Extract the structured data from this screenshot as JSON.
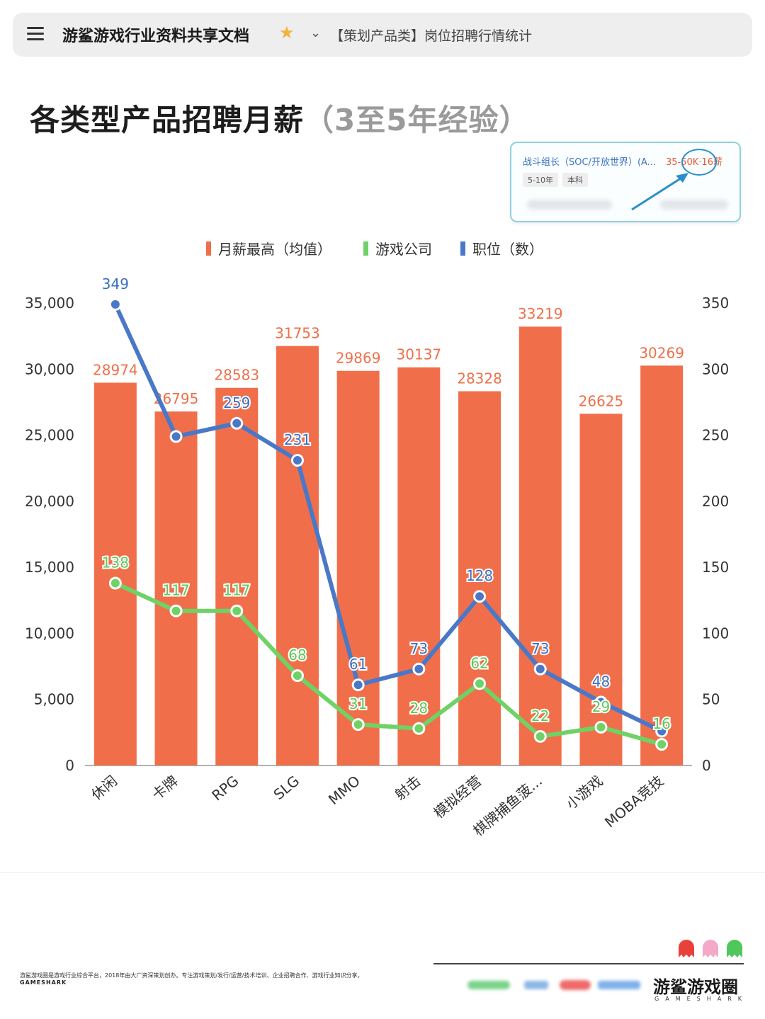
{
  "header": {
    "doc_title": "游鲨游戏行业资料共享文档",
    "sheet_name": "【策划产品类】岗位招聘行情统计",
    "menu_icon": "menu-icon",
    "star_icon": "star-icon",
    "chevron_icon": "chevron-down-icon"
  },
  "page": {
    "title_main": "各类型产品招聘月薪",
    "title_sub": "（3至5年经验）"
  },
  "job_card": {
    "title": "战斗组长（SOC/开放世界）(A...",
    "salary": "35-50K·16薪",
    "tags": [
      "5-10年",
      "本科"
    ]
  },
  "colors": {
    "bar": "#f06f4a",
    "companies": "#6fd266",
    "positions": "#4a78c8",
    "accent": "#2a8fc9"
  },
  "chart_data": {
    "type": "bar",
    "legend": [
      "月薪最高（均值）",
      "游戏公司",
      "职位（数）"
    ],
    "categories": [
      "休闲",
      "卡牌",
      "RPG",
      "SLG",
      "MMO",
      "射击",
      "模拟经营",
      "棋牌捕鱼菠...",
      "小游戏",
      "MOBA竞技"
    ],
    "series": [
      {
        "name": "月薪最高（均值）",
        "kind": "bar",
        "axis": "left",
        "values": [
          28974,
          26795,
          28583,
          31753,
          29869,
          30137,
          28328,
          33219,
          26625,
          30269
        ]
      },
      {
        "name": "游戏公司",
        "kind": "line",
        "axis": "right",
        "values": [
          138,
          117,
          117,
          68,
          31,
          28,
          62,
          22,
          29,
          16
        ]
      },
      {
        "name": "职位（数）",
        "kind": "line",
        "axis": "right",
        "values": [
          349,
          249,
          259,
          231,
          61,
          73,
          128,
          73,
          48,
          26
        ]
      }
    ],
    "point_labels": {
      "游戏公司": [
        "138",
        "117",
        "117",
        "68",
        "31",
        "28",
        "62",
        "22",
        "29",
        "16"
      ],
      "职位（数）": [
        "349",
        "",
        "259",
        "231",
        "61",
        "73",
        "128",
        "73",
        "48",
        ""
      ]
    },
    "y_left": {
      "min": 0,
      "max": 35000,
      "ticks": [
        "0",
        "5,000",
        "10,000",
        "15,000",
        "20,000",
        "25,000",
        "30,000",
        "35,000"
      ]
    },
    "y_right": {
      "min": 0,
      "max": 350,
      "ticks": [
        "0",
        "50",
        "100",
        "150",
        "200",
        "250",
        "300",
        "350"
      ]
    }
  },
  "footer": {
    "description": "游鲨游戏圈是游戏行业综合平台，2018年由大厂资深策划创办。专注游戏策划/发行/运营/技术培训、企业招聘合作、游戏行业知识分享。",
    "brand_small": "GAMESHARK",
    "brand_name": "游鲨游戏圈",
    "brand_sub": "GAMESHARK"
  }
}
